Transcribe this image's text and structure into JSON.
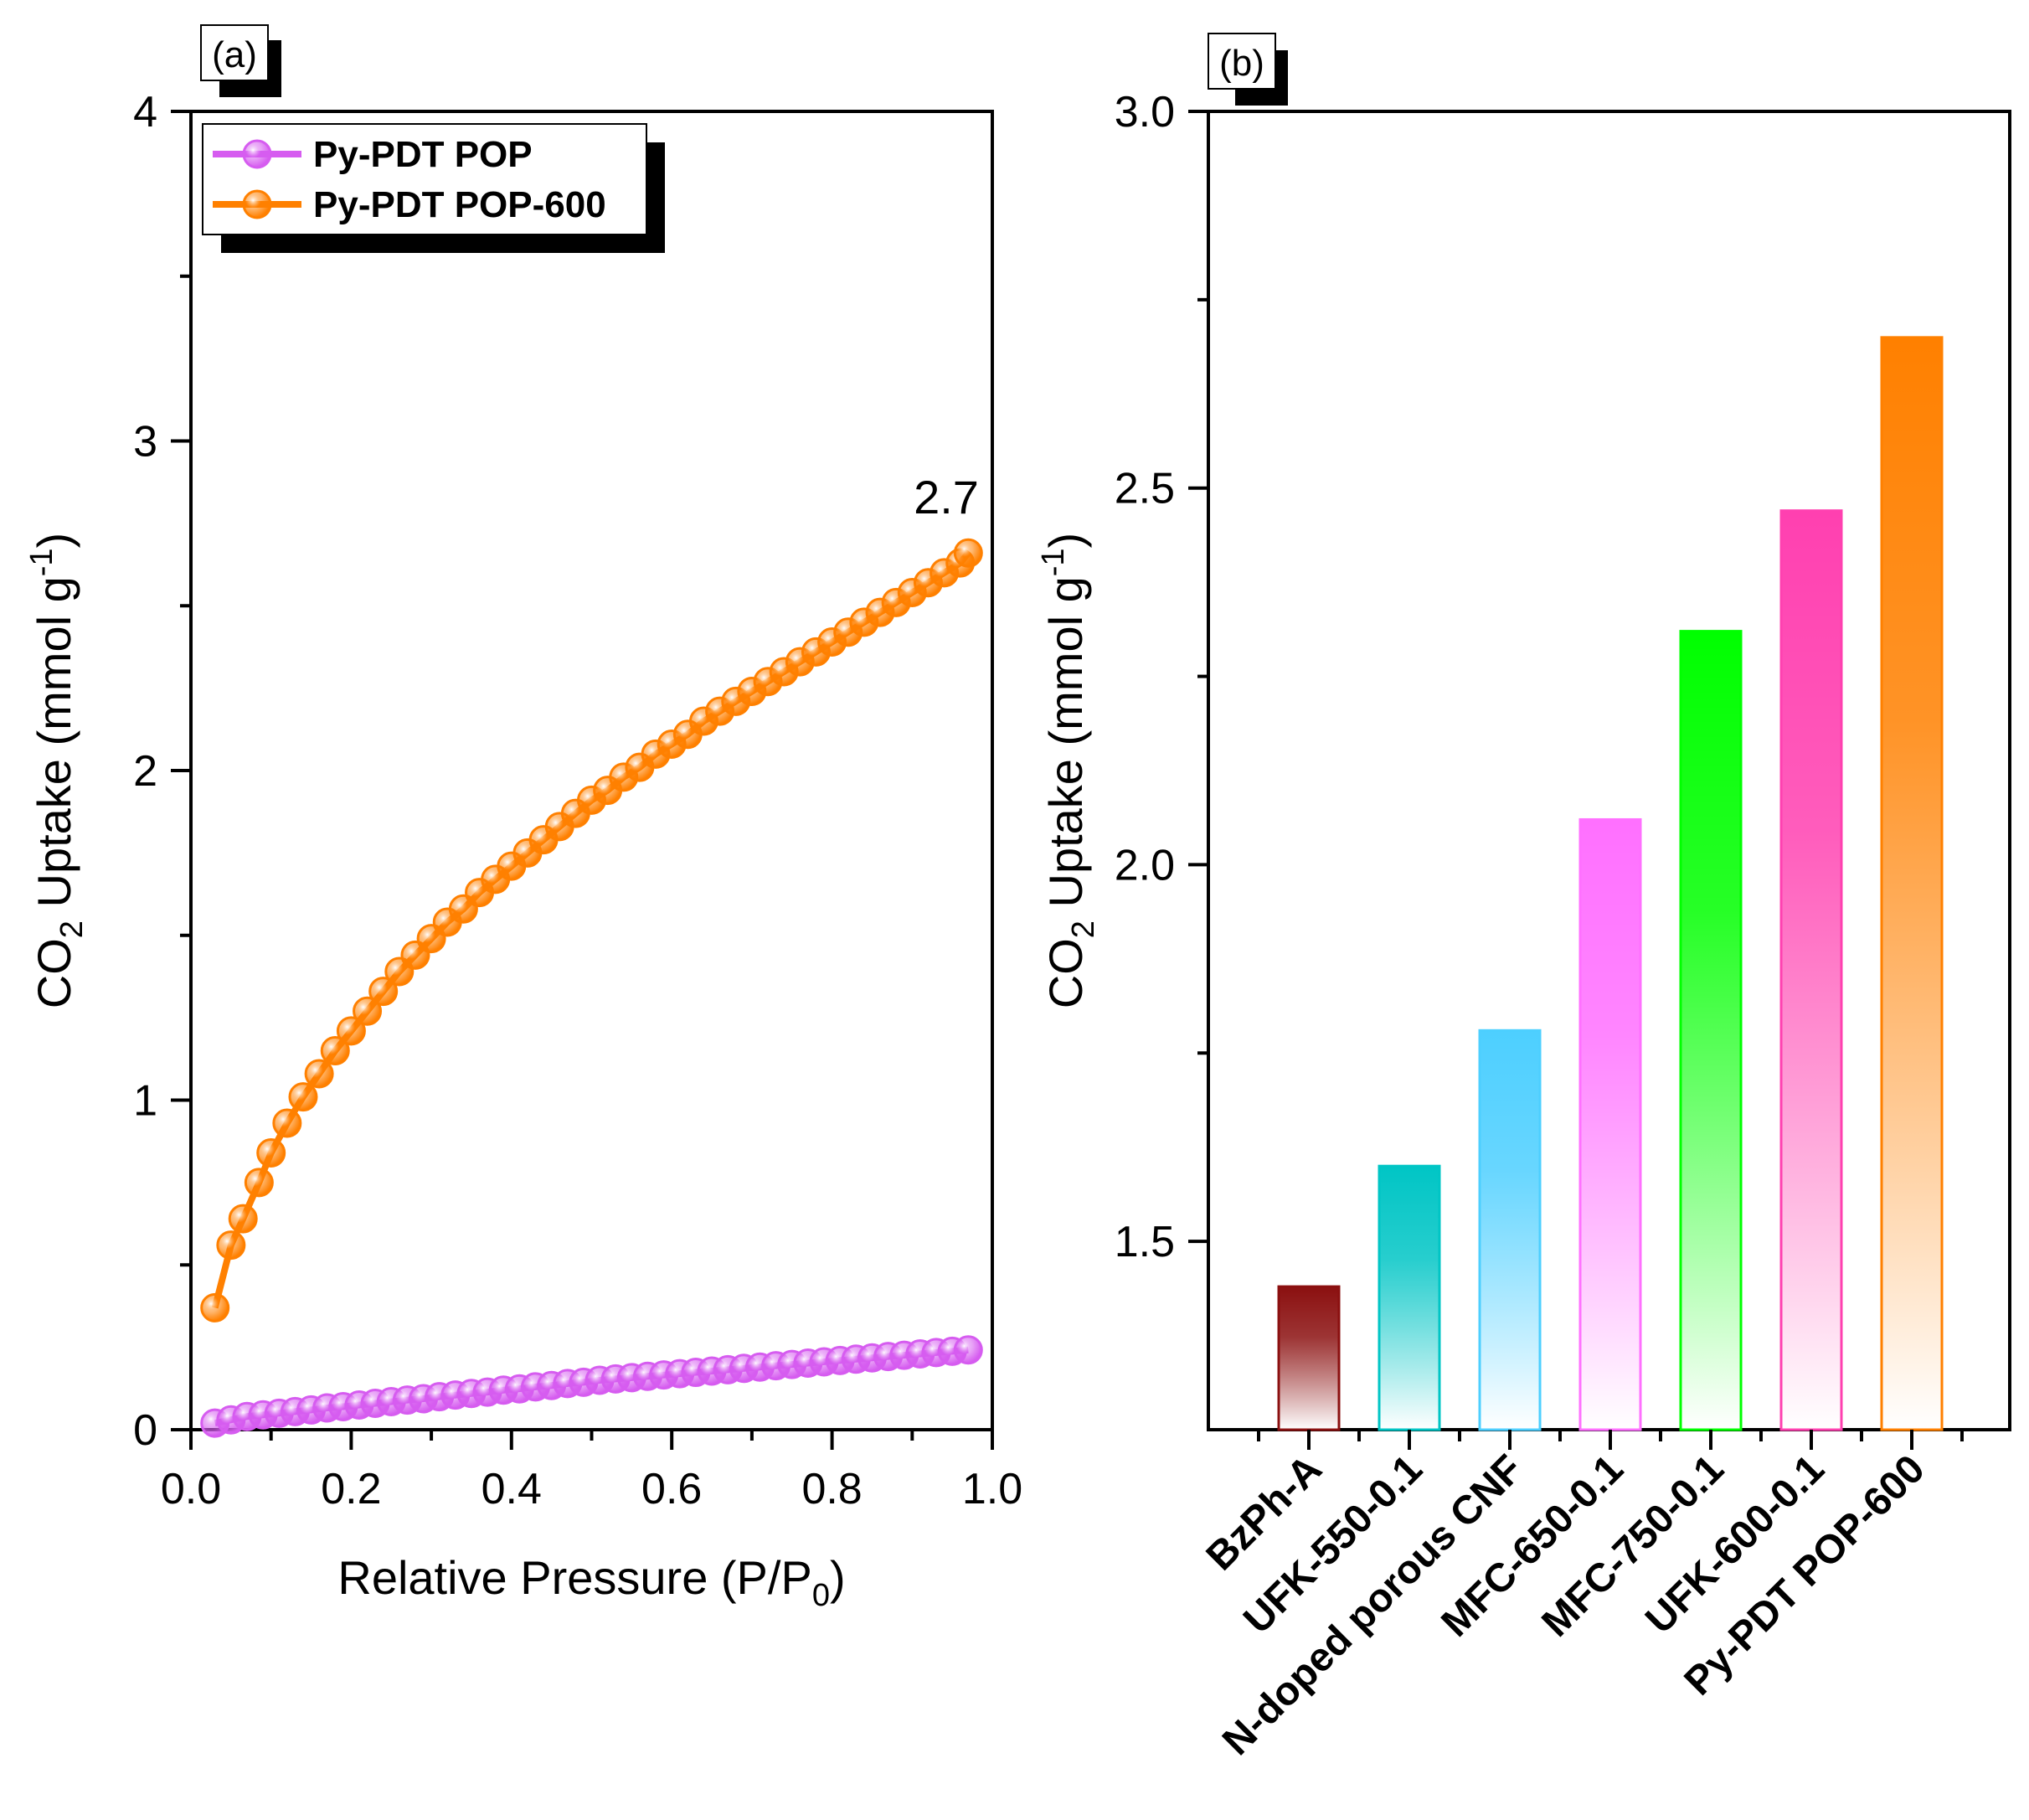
{
  "chart_data": [
    {
      "panel": "(a)",
      "type": "line",
      "xlabel": "Relative Pressure (P/P0)",
      "xlabel_main": "Relative Pressure (P/P",
      "xlabel_sub": "0",
      "xlabel_tail": ")",
      "ylabel": "CO2 Uptake (mmol g-1)",
      "ylabel_pre": "CO",
      "ylabel_sub": "2",
      "ylabel_mid": " Uptake (mmol g",
      "ylabel_sup": "-1",
      "ylabel_tail": ")",
      "xlim": [
        0.0,
        1.0
      ],
      "ylim": [
        0,
        4
      ],
      "xticks": [
        "0.0",
        "0.2",
        "0.4",
        "0.6",
        "0.8",
        "1.0"
      ],
      "yticks": [
        "0",
        "1",
        "2",
        "3",
        "4"
      ],
      "legend_position": "top-left",
      "annotation": "2.7",
      "series": [
        {
          "name": "Py-PDT POP",
          "color": "#d65cf0",
          "x": [
            0.03,
            0.05,
            0.07,
            0.09,
            0.11,
            0.13,
            0.15,
            0.17,
            0.19,
            0.21,
            0.23,
            0.25,
            0.27,
            0.29,
            0.31,
            0.33,
            0.35,
            0.37,
            0.39,
            0.41,
            0.43,
            0.45,
            0.47,
            0.49,
            0.51,
            0.53,
            0.55,
            0.57,
            0.59,
            0.61,
            0.63,
            0.65,
            0.67,
            0.69,
            0.71,
            0.73,
            0.75,
            0.77,
            0.79,
            0.81,
            0.83,
            0.85,
            0.87,
            0.89,
            0.91,
            0.93,
            0.95,
            0.97
          ],
          "y": [
            0.02,
            0.03,
            0.04,
            0.045,
            0.05,
            0.055,
            0.06,
            0.066,
            0.07,
            0.075,
            0.08,
            0.085,
            0.09,
            0.094,
            0.1,
            0.105,
            0.11,
            0.114,
            0.12,
            0.124,
            0.13,
            0.134,
            0.14,
            0.144,
            0.15,
            0.154,
            0.158,
            0.162,
            0.166,
            0.17,
            0.174,
            0.178,
            0.182,
            0.186,
            0.19,
            0.194,
            0.198,
            0.202,
            0.206,
            0.21,
            0.214,
            0.218,
            0.222,
            0.226,
            0.23,
            0.234,
            0.238,
            0.242
          ]
        },
        {
          "name": "Py-PDT POP-600",
          "color": "#ff8000",
          "x": [
            0.03,
            0.05,
            0.065,
            0.085,
            0.1,
            0.12,
            0.14,
            0.16,
            0.18,
            0.2,
            0.22,
            0.24,
            0.26,
            0.28,
            0.3,
            0.32,
            0.34,
            0.36,
            0.38,
            0.4,
            0.42,
            0.44,
            0.46,
            0.48,
            0.5,
            0.52,
            0.54,
            0.56,
            0.58,
            0.6,
            0.62,
            0.64,
            0.66,
            0.68,
            0.7,
            0.72,
            0.74,
            0.76,
            0.78,
            0.8,
            0.82,
            0.84,
            0.86,
            0.88,
            0.9,
            0.92,
            0.94,
            0.96,
            0.97
          ],
          "y": [
            0.37,
            0.56,
            0.64,
            0.75,
            0.84,
            0.93,
            1.01,
            1.08,
            1.15,
            1.21,
            1.27,
            1.33,
            1.39,
            1.44,
            1.49,
            1.54,
            1.58,
            1.63,
            1.67,
            1.71,
            1.75,
            1.79,
            1.83,
            1.87,
            1.91,
            1.94,
            1.98,
            2.01,
            2.05,
            2.08,
            2.11,
            2.15,
            2.18,
            2.21,
            2.24,
            2.27,
            2.3,
            2.33,
            2.36,
            2.39,
            2.42,
            2.45,
            2.48,
            2.51,
            2.54,
            2.57,
            2.6,
            2.63,
            2.66
          ]
        }
      ]
    },
    {
      "panel": "(b)",
      "type": "bar",
      "xlabel": "",
      "ylabel": "CO2 Uptake (mmol g-1)",
      "ylabel_pre": "CO",
      "ylabel_sub": "2",
      "ylabel_mid": " Uptake (mmol g",
      "ylabel_sup": "-1",
      "ylabel_tail": ")",
      "ylim": [
        1.25,
        3.0
      ],
      "yticks": [
        "1.5",
        "2.0",
        "2.5",
        "3.0"
      ],
      "categories": [
        "BzPh-A",
        "UFK-550-0.1",
        "N-doped porous CNF",
        "MFC-650-0.1",
        "MFC-750-0.1",
        "UFK-600-0.1",
        "Py-PDT POP-600"
      ],
      "values": [
        1.44,
        1.6,
        1.78,
        2.06,
        2.31,
        2.47,
        2.7
      ],
      "colors": [
        "#8b1010",
        "#00c5c5",
        "#4dcfff",
        "#ff70ff",
        "#00ff00",
        "#ff40b0",
        "#ff8000"
      ]
    }
  ]
}
